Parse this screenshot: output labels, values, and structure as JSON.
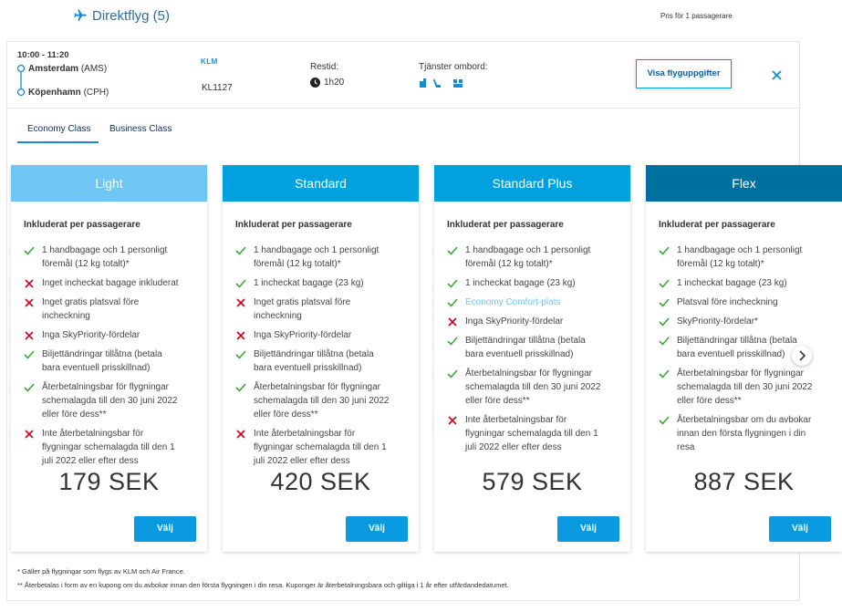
{
  "header": {
    "title": "Direktflyg (5)",
    "note": "Pris för 1 passagerare"
  },
  "flight": {
    "time": "10:00 - 11:20",
    "origin": {
      "city": "Amsterdam",
      "code": "(AMS)"
    },
    "destination": {
      "city": "Köpenhamn",
      "code": "(CPH)"
    },
    "airline": "KLM",
    "flight_number": "KL1127",
    "duration_label": "Restid:",
    "duration": "1h20",
    "services_label": "Tjänster ombord:",
    "details_button": "Visa flyguppgifter"
  },
  "tabs": [
    "Economy Class",
    "Business Class"
  ],
  "fares": [
    {
      "name": "Light",
      "color": "#6ec6f2",
      "included_label": "Inkluderat per passagerare",
      "features": [
        {
          "text": "1 handbagage och 1 personligt föremål (12 kg totalt)*",
          "included": true
        },
        {
          "text": "Inget incheckat bagage inkluderat",
          "included": false
        },
        {
          "text": "Inget gratis platsval före incheckning",
          "included": false
        },
        {
          "text": "Inga SkyPriority-fördelar",
          "included": false
        },
        {
          "text": "Biljettändringar tillåtna (betala bara eventuell prisskillnad)",
          "included": true
        },
        {
          "text": "Återbetalningsbar för flygningar schemalagda till den 30 juni 2022 eller före dess**",
          "included": true
        },
        {
          "text": "Inte återbetalningsbar för flygningar schemalagda till den 1 juli 2022 eller efter dess",
          "included": false
        }
      ],
      "price": "179 SEK",
      "button": "Välj"
    },
    {
      "name": "Standard",
      "color": "#00a1de",
      "included_label": "Inkluderat per passagerare",
      "features": [
        {
          "text": "1 handbagage och 1 personligt föremål (12 kg totalt)*",
          "included": true
        },
        {
          "text": "1 incheckat bagage (23 kg)",
          "included": true
        },
        {
          "text": "Inget gratis platsval före incheckning",
          "included": false
        },
        {
          "text": "Inga SkyPriority-fördelar",
          "included": false
        },
        {
          "text": "Biljettändringar tillåtna (betala bara eventuell prisskillnad)",
          "included": true
        },
        {
          "text": "Återbetalningsbar för flygningar schemalagda till den 30 juni 2022 eller före dess**",
          "included": true
        },
        {
          "text": "Inte återbetalningsbar för flygningar schemalagda till den 1 juli 2022 eller efter dess",
          "included": false
        }
      ],
      "price": "420 SEK",
      "button": "Välj"
    },
    {
      "name": "Standard Plus",
      "color": "#00a1de",
      "included_label": "Inkluderat per passagerare",
      "features": [
        {
          "text": "1 handbagage och 1 personligt föremål (12 kg totalt)*",
          "included": true
        },
        {
          "text": "1 incheckat bagage (23 kg)",
          "included": true
        },
        {
          "text": "Economy Comfort-plats",
          "included": true,
          "highlight": true
        },
        {
          "text": "Inga SkyPriority-fördelar",
          "included": false
        },
        {
          "text": "Biljettändringar tillåtna (betala bara eventuell prisskillnad)",
          "included": true
        },
        {
          "text": "Återbetalningsbar för flygningar schemalagda till den 30 juni 2022 eller före dess**",
          "included": true
        },
        {
          "text": "Inte återbetalningsbar för flygningar schemalagda till den 1 juli 2022 eller efter dess",
          "included": false
        }
      ],
      "price": "579 SEK",
      "button": "Välj"
    },
    {
      "name": "Flex",
      "color": "#00709f",
      "included_label": "Inkluderat per passagerare",
      "features": [
        {
          "text": "1 handbagage och 1 personligt föremål (12 kg totalt)*",
          "included": true
        },
        {
          "text": "1 incheckat bagage (23 kg)",
          "included": true
        },
        {
          "text": "Platsval före incheckning",
          "included": true
        },
        {
          "text": "SkyPriority-fördelar*",
          "included": true
        },
        {
          "text": "Biljettändringar tillåtna (betala bara eventuell prisskillnad)",
          "included": true
        },
        {
          "text": "Återbetalningsbar för flygningar schemalagda till den 30 juni 2022 eller före dess**",
          "included": true
        },
        {
          "text": "Återbetalningsbar om du avbokar innan den första flygningen i din resa",
          "included": true
        }
      ],
      "price": "887 SEK",
      "button": "Välj"
    }
  ],
  "footnotes": [
    "* Gäller på flygningar som flygs av KLM och Air France.",
    "** Återbetalas i form av en kupong om du avbokar innan den första flygningen i din resa. Kuponger är återbetalningsbara och giltiga i 1 år efter utfärdandedatumet."
  ]
}
